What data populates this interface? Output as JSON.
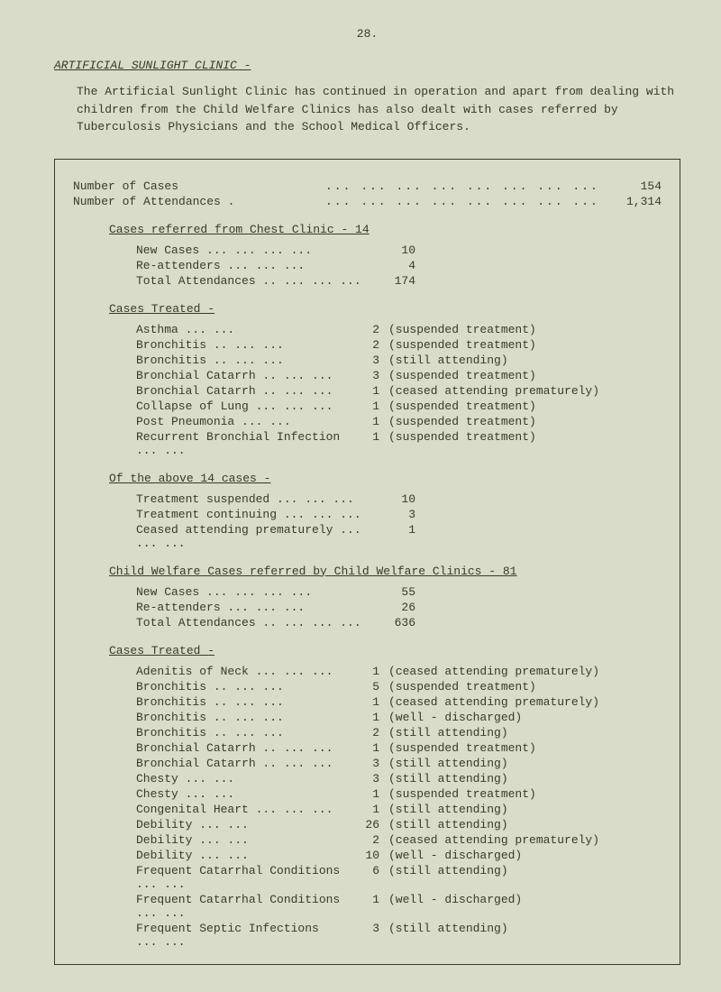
{
  "pageNumber": "28.",
  "heading": "ARTIFICIAL SUNLIGHT CLINIC -",
  "intro": "The Artificial Sunlight Clinic has continued in operation and apart from dealing with children from the Child Welfare Clinics has also dealt with cases referred by Tuberculosis Physicians and the School Medical Officers.",
  "summary": [
    {
      "label": "Number of Cases",
      "value": "154"
    },
    {
      "label": "Number of Attendances .",
      "value": "1,314"
    }
  ],
  "chestHeading": "Cases referred from Chest Clinic - 14",
  "chestCounts": [
    {
      "label": "New Cases ...",
      "value": "10"
    },
    {
      "label": "Re-attenders",
      "value": "4"
    },
    {
      "label": "Total Attendances ..",
      "value": "174"
    }
  ],
  "casesTreatedHeading": "Cases Treated -",
  "chestCases": [
    {
      "label": "Asthma",
      "n": "2",
      "note": "(suspended treatment)"
    },
    {
      "label": "Bronchitis ..",
      "n": "2",
      "note": "(suspended treatment)"
    },
    {
      "label": "Bronchitis ..",
      "n": "3",
      "note": "(still attending)"
    },
    {
      "label": "Bronchial Catarrh ..",
      "n": "3",
      "note": "(suspended treatment)"
    },
    {
      "label": "Bronchial Catarrh ..",
      "n": "1",
      "note": "(ceased attending prematurely)"
    },
    {
      "label": "Collapse of Lung ...",
      "n": "1",
      "note": "(suspended treatment)"
    },
    {
      "label": "Post Pneumonia",
      "n": "1",
      "note": "(suspended treatment)"
    },
    {
      "label": "Recurrent Bronchial Infection",
      "n": "1",
      "note": "(suspended treatment)"
    }
  ],
  "ofAboveHeading": "Of the above 14 cases -",
  "ofAbove": [
    {
      "label": "Treatment suspended",
      "value": "10"
    },
    {
      "label": "Treatment continuing",
      "value": "3"
    },
    {
      "label": "Ceased attending prematurely",
      "value": "1"
    }
  ],
  "cwHeading": "Child Welfare Cases referred by Child Welfare Clinics - 81",
  "cwCounts": [
    {
      "label": "New Cases ...",
      "value": "55"
    },
    {
      "label": "Re-attenders",
      "value": "26"
    },
    {
      "label": "Total Attendances ..",
      "value": "636"
    }
  ],
  "cwCases": [
    {
      "label": "Adenitis of Neck ...",
      "n": "1",
      "note": "(ceased attending prematurely)"
    },
    {
      "label": "Bronchitis ..",
      "n": "5",
      "note": "(suspended treatment)"
    },
    {
      "label": "Bronchitis ..",
      "n": "1",
      "note": "(ceased attending prematurely)"
    },
    {
      "label": "Bronchitis ..",
      "n": "1",
      "note": "(well - discharged)"
    },
    {
      "label": "Bronchitis ..",
      "n": "2",
      "note": "(still attending)"
    },
    {
      "label": "Bronchial Catarrh ..",
      "n": "1",
      "note": "(suspended treatment)"
    },
    {
      "label": "Bronchial Catarrh ..",
      "n": "3",
      "note": "(still attending)"
    },
    {
      "label": "Chesty",
      "n": "3",
      "note": "(still attending)"
    },
    {
      "label": "Chesty",
      "n": "1",
      "note": "(suspended treatment)"
    },
    {
      "label": "Congenital Heart ...",
      "n": "1",
      "note": "(still attending)"
    },
    {
      "label": "Debility",
      "n": "26",
      "note": "(still attending)"
    },
    {
      "label": "Debility",
      "n": "2",
      "note": "(ceased attending prematurely)"
    },
    {
      "label": "Debility",
      "n": "10",
      "note": "(well - discharged)"
    },
    {
      "label": "Frequent Catarrhal Conditions",
      "n": "6",
      "note": "(still attending)"
    },
    {
      "label": "Frequent Catarrhal Conditions",
      "n": "1",
      "note": "(well - discharged)"
    },
    {
      "label": "Frequent Septic Infections",
      "n": "3",
      "note": "(still attending)"
    }
  ]
}
